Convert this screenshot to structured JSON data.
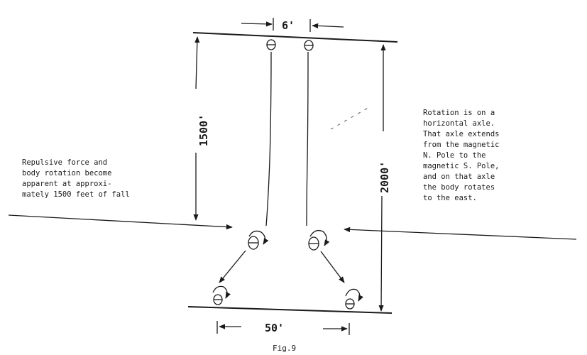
{
  "dimensions": {
    "top_width": "6'",
    "left_height": "1500'",
    "right_height": "2000'",
    "bottom_width": "50'"
  },
  "left_note": [
    "Repulsive force and",
    "body rotation become",
    "apparent at approxi-",
    "mately 1500 feet of fall"
  ],
  "right_note": [
    "Rotation is on a",
    "horizontal axle.",
    "That axle extends",
    "from the magnetic",
    "N. Pole to the",
    "magnetic S. Pole,",
    "and on that axle",
    "the body rotates",
    "to the east."
  ],
  "caption": "Fig.9"
}
